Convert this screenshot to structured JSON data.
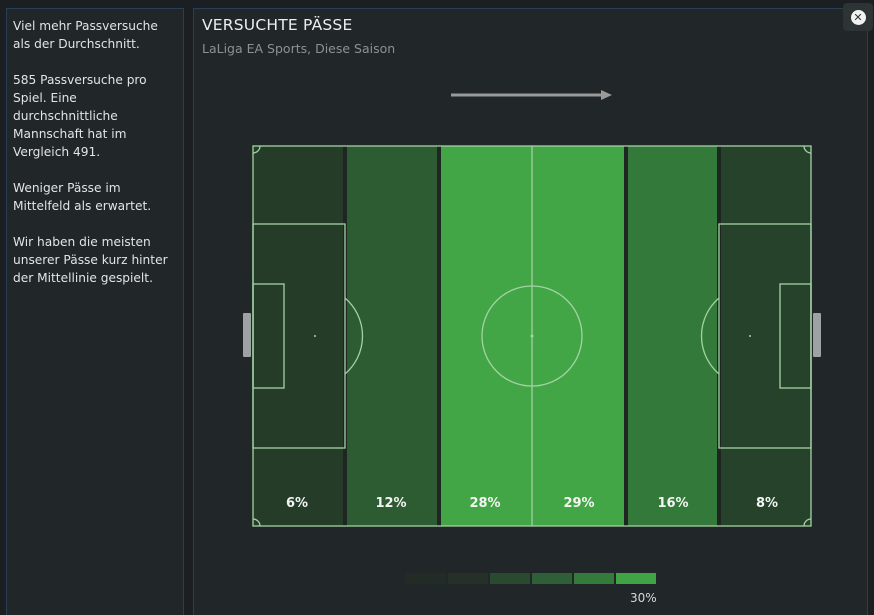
{
  "sidebar": {
    "paragraphs": [
      "Viel mehr Passversuche als der Durchschnitt.",
      "585 Passversuche pro Spiel. Eine durchschnittliche Mannschaft hat im Vergleich 491.",
      "Weniger Pässe im Mittelfeld als erwartet.",
      "Wir haben die meisten unserer Pässe kurz hinter der Mittellinie gespielt."
    ]
  },
  "panel": {
    "title": "VERSUCHTE PÄSSE",
    "subtitle": "LaLiga EA Sports, Diese Saison"
  },
  "icons": {
    "close": "close-icon",
    "direction": "arrow-right-icon"
  },
  "zones": [
    {
      "label": "6%",
      "value": 6,
      "color": "#253c29"
    },
    {
      "label": "12%",
      "value": 12,
      "color": "#2d5c33"
    },
    {
      "label": "28%",
      "value": 28,
      "color": "#42a646"
    },
    {
      "label": "29%",
      "value": 29,
      "color": "#42a646"
    },
    {
      "label": "16%",
      "value": 16,
      "color": "#337a3a"
    },
    {
      "label": "8%",
      "value": 8,
      "color": "#26422b"
    }
  ],
  "legend": {
    "colors": [
      "#222b25",
      "#253128",
      "#294a2f",
      "#2f5f36",
      "#347a3b",
      "#41a444"
    ],
    "max_label": "30%"
  },
  "colors": {
    "pitch_lines": "#a3d2a3",
    "panel_border": "#2a3f55",
    "background": "#1b1f22"
  }
}
